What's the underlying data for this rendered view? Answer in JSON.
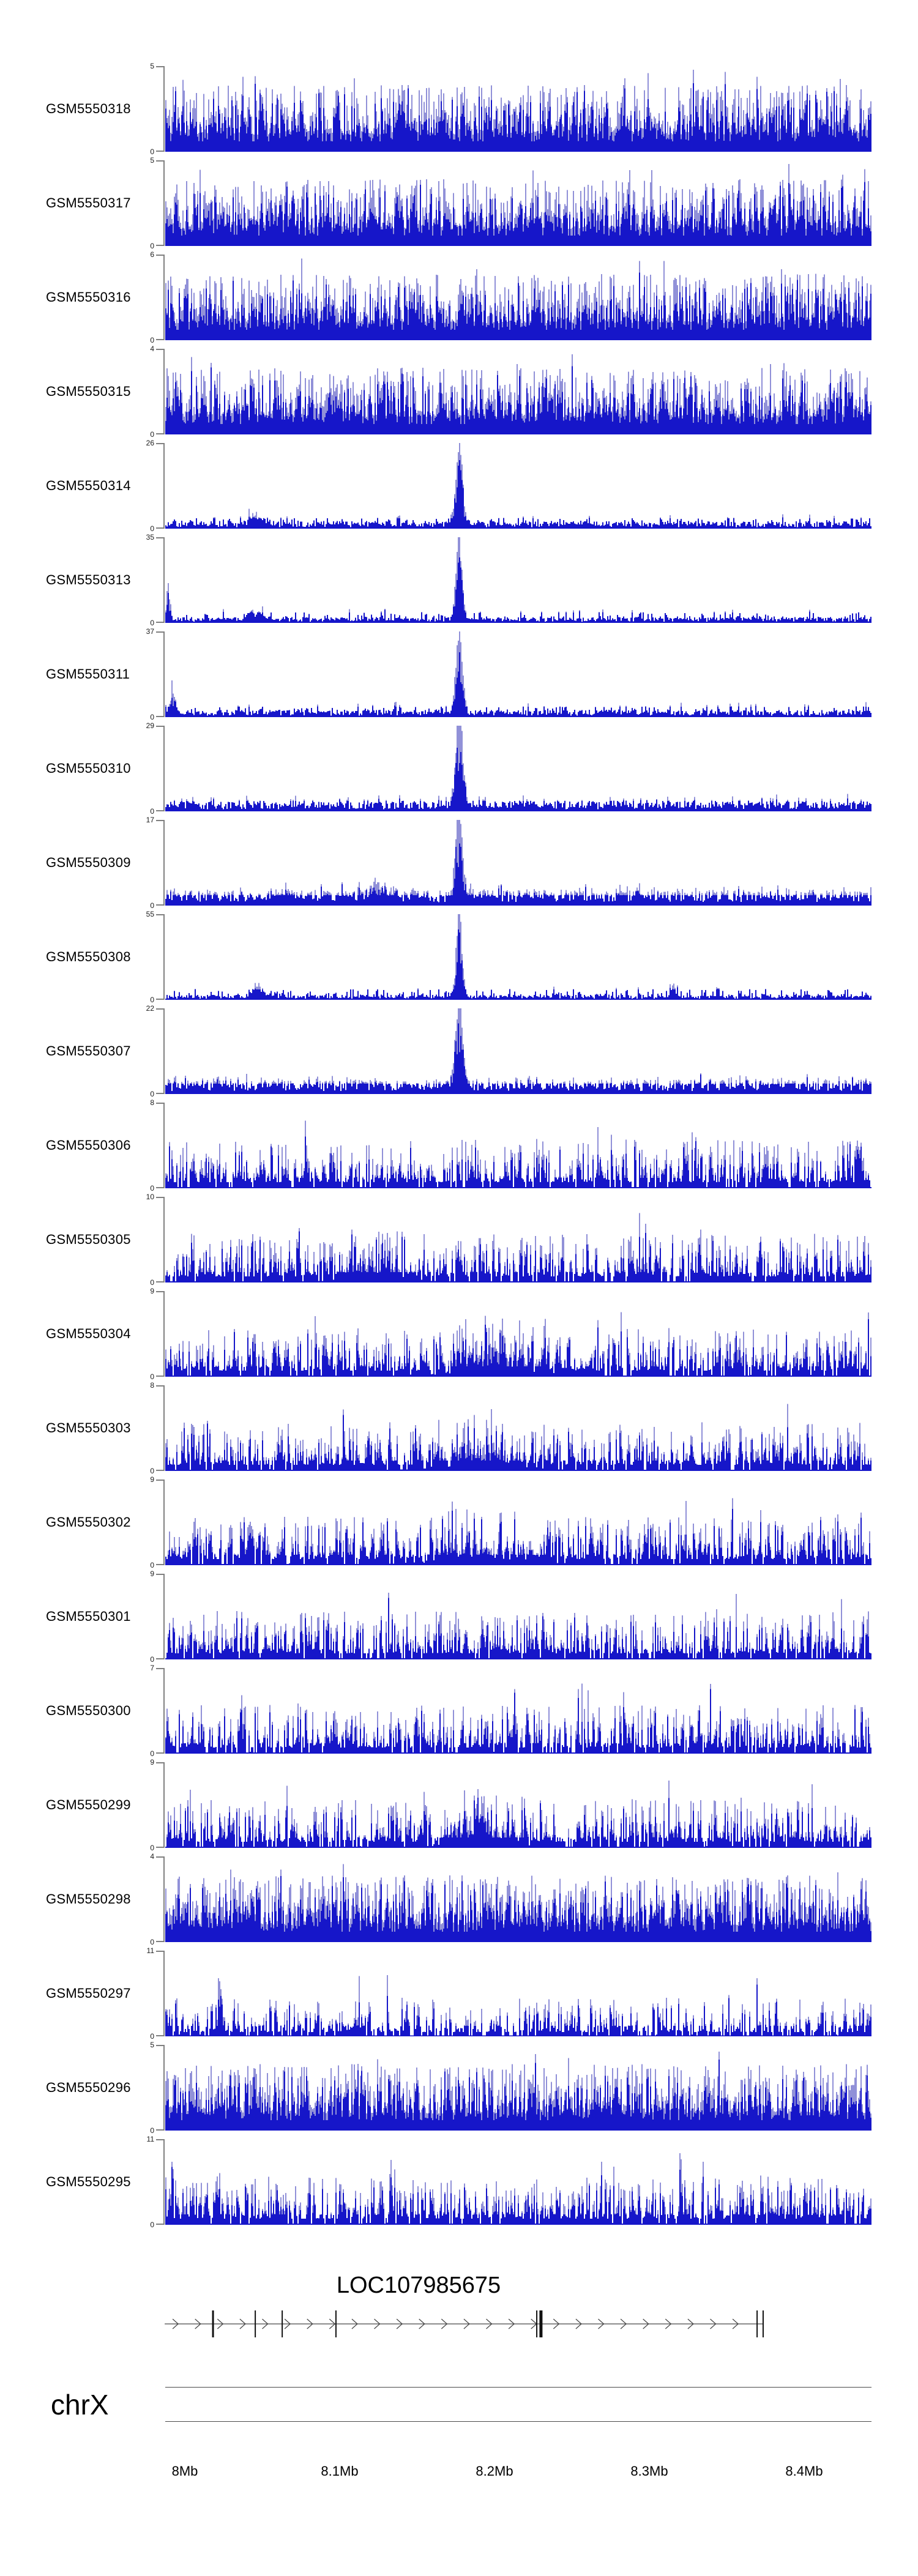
{
  "figure_type": "genome browser coverage figure",
  "colors": {
    "signal_dark": "#1616c9",
    "signal_light": "#9191d8",
    "axis_bracket_gray": "#808080",
    "ruler_line": "#4a4a4a",
    "gene_line": "#666666",
    "exon_mark": "#111111",
    "text": "#000000"
  },
  "chart_data": {
    "type": "area",
    "description": "23 stacked read-coverage tracks (blue histogram signal) over chrX 7.99-8.44 Mb; tracks GSM5550314-GSM5550307 share one dominant sharp peak at ~8.176 Mb; below is the LOC107985675 gene model with rightward strand arrows and exon tick marks, then a chrX coordinate ruler.",
    "y_zero_label": "0",
    "x_axis": {
      "chromosome": "chrX",
      "view_start_mb": 7.987,
      "view_end_mb": 8.443,
      "major_ticks": [
        {
          "mb": 8.0,
          "label": "8Mb"
        },
        {
          "mb": 8.1,
          "label": "8.1Mb"
        },
        {
          "mb": 8.2,
          "label": "8.2Mb"
        },
        {
          "mb": 8.3,
          "label": "8.3Mb"
        },
        {
          "mb": 8.4,
          "label": "8.4Mb"
        }
      ],
      "minor_ticks_mb": [
        8.02,
        8.04,
        8.06,
        8.08,
        8.12,
        8.14,
        8.16,
        8.18,
        8.22,
        8.24,
        8.26,
        8.28,
        8.32,
        8.34,
        8.36,
        8.38,
        8.42,
        8.44
      ]
    },
    "gene_track": {
      "gene_label": "LOC107985675",
      "strand": "+",
      "line_start_mb": 7.987,
      "line_end_mb": 8.3735,
      "exon_marks": [
        {
          "mb": 8.0182,
          "w": 3
        },
        {
          "mb": 8.0455,
          "w": 2
        },
        {
          "mb": 8.0629,
          "w": 2
        },
        {
          "mb": 8.0976,
          "w": 2
        },
        {
          "mb": 8.2273,
          "w": 2
        },
        {
          "mb": 8.23,
          "w": 5
        },
        {
          "mb": 8.3696,
          "w": 2
        },
        {
          "mb": 8.3735,
          "w": 2
        }
      ]
    },
    "tracks": [
      {
        "label": "GSM5550318",
        "ymax": 5,
        "profile": "dense-noise",
        "seed": 101
      },
      {
        "label": "GSM5550317",
        "ymax": 5,
        "profile": "dense-noise",
        "seed": 102
      },
      {
        "label": "GSM5550316",
        "ymax": 6,
        "profile": "dense-noise",
        "seed": 103
      },
      {
        "label": "GSM5550315",
        "ymax": 4,
        "profile": "dense-noise",
        "seed": 104
      },
      {
        "label": "GSM5550314",
        "ymax": 26,
        "profile": "sharp-peak",
        "seed": 105,
        "base": 0.05,
        "peak_mb": 8.176,
        "peak": {
          "c": 0.4163,
          "h": 1.0,
          "w": 0.0045
        },
        "bumps": [
          [
            0.13,
            0.1,
            0.01
          ]
        ]
      },
      {
        "label": "GSM5550313",
        "ymax": 35,
        "profile": "sharp-peak",
        "seed": 106,
        "base": 0.04,
        "peak_mb": 8.176,
        "peak": {
          "c": 0.4163,
          "h": 1.0,
          "w": 0.0042
        },
        "bumps": [
          [
            0.005,
            0.5,
            0.002
          ],
          [
            0.13,
            0.09,
            0.01
          ]
        ]
      },
      {
        "label": "GSM5550311",
        "ymax": 37,
        "profile": "sharp-peak",
        "seed": 107,
        "base": 0.05,
        "peak_mb": 8.176,
        "peak": {
          "c": 0.4163,
          "h": 1.0,
          "w": 0.0045
        },
        "bumps": [
          [
            0.01,
            0.22,
            0.004
          ]
        ]
      },
      {
        "label": "GSM5550310",
        "ymax": 29,
        "profile": "sharp-peak",
        "seed": 108,
        "base": 0.07,
        "peak_mb": 8.176,
        "peak": {
          "c": 0.4163,
          "h": 1.0,
          "w": 0.005
        }
      },
      {
        "label": "GSM5550309",
        "ymax": 17,
        "profile": "sharp-peak",
        "seed": 109,
        "base": 0.11,
        "peak_mb": 8.176,
        "peak": {
          "c": 0.4163,
          "h": 1.0,
          "w": 0.005
        },
        "bumps": [
          [
            0.3,
            0.18,
            0.012
          ]
        ]
      },
      {
        "label": "GSM5550308",
        "ymax": 55,
        "profile": "sharp-peak",
        "seed": 110,
        "base": 0.035,
        "peak_mb": 8.176,
        "peak": {
          "c": 0.4163,
          "h": 1.0,
          "w": 0.004
        },
        "bumps": [
          [
            0.13,
            0.14,
            0.006
          ],
          [
            0.72,
            0.11,
            0.004
          ]
        ]
      },
      {
        "label": "GSM5550307",
        "ymax": 22,
        "profile": "sharp-peak",
        "seed": 111,
        "base": 0.1,
        "peak_mb": 8.176,
        "peak": {
          "c": 0.4163,
          "h": 1.0,
          "w": 0.005
        }
      },
      {
        "label": "GSM5550306",
        "ymax": 8,
        "profile": "medium-noise",
        "seed": 112
      },
      {
        "label": "GSM5550305",
        "ymax": 10,
        "profile": "medium-noise",
        "seed": 113,
        "bumps": [
          [
            0.3,
            0.12,
            0.03
          ]
        ]
      },
      {
        "label": "GSM5550304",
        "ymax": 9,
        "profile": "medium-noise",
        "seed": 114,
        "bumps": [
          [
            0.47,
            0.16,
            0.04
          ]
        ]
      },
      {
        "label": "GSM5550303",
        "ymax": 8,
        "profile": "medium-noise",
        "seed": 115,
        "bumps": [
          [
            0.45,
            0.13,
            0.04
          ]
        ]
      },
      {
        "label": "GSM5550302",
        "ymax": 9,
        "profile": "medium-noise",
        "seed": 116,
        "bumps": [
          [
            0.45,
            0.1,
            0.05
          ]
        ]
      },
      {
        "label": "GSM5550301",
        "ymax": 9,
        "profile": "medium-noise",
        "seed": 117
      },
      {
        "label": "GSM5550300",
        "ymax": 7,
        "profile": "medium-noise",
        "seed": 118
      },
      {
        "label": "GSM5550299",
        "ymax": 9,
        "profile": "medium-noise",
        "seed": 119,
        "bumps": [
          [
            0.45,
            0.22,
            0.03
          ]
        ]
      },
      {
        "label": "GSM5550298",
        "ymax": 4,
        "profile": "dense-noise",
        "seed": 120
      },
      {
        "label": "GSM5550297",
        "ymax": 11,
        "profile": "sparse-noise",
        "seed": 121,
        "bumps": [
          [
            0.078,
            0.75,
            0.002
          ]
        ]
      },
      {
        "label": "GSM5550296",
        "ymax": 5,
        "profile": "dense-noise",
        "seed": 122
      },
      {
        "label": "GSM5550295",
        "ymax": 11,
        "profile": "medium-noise",
        "seed": 123,
        "bumps": [
          [
            0.32,
            0.55,
            0.002
          ],
          [
            0.73,
            0.4,
            0.002
          ]
        ]
      }
    ]
  }
}
